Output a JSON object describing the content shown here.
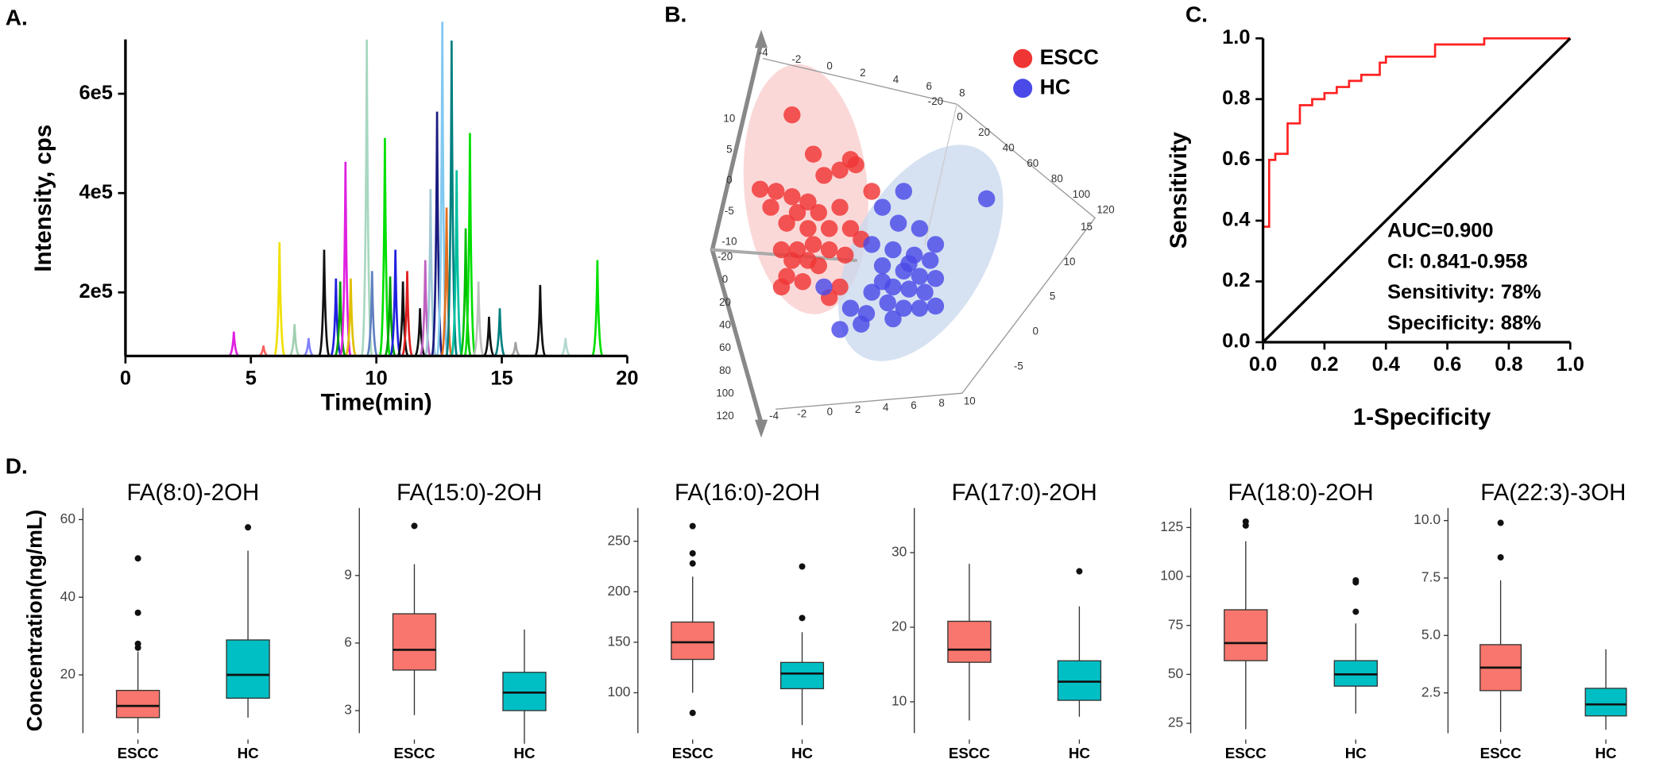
{
  "chart_data": [
    {
      "type": "peaks",
      "panel_label": "A.",
      "x_label": "Time(min)",
      "y_label": "Intensity, cps",
      "xlim": [
        0,
        20
      ],
      "xticks": [
        0,
        5,
        10,
        15,
        20
      ],
      "ylim": [
        72000,
        750000
      ],
      "yticks": [
        {
          "value": 200000,
          "label": "2e5"
        },
        {
          "value": 400000,
          "label": "4e5"
        },
        {
          "value": 600000,
          "label": "6e5"
        }
      ],
      "peaks": [
        {
          "x": 4.32,
          "value": 121000,
          "color": "#e020e0"
        },
        {
          "x": 5.5,
          "value": 93000,
          "color": "#ff6060"
        },
        {
          "x": 6.14,
          "value": 301000,
          "color": "#f0e000"
        },
        {
          "x": 6.74,
          "value": 136000,
          "color": "#a0d0b0"
        },
        {
          "x": 7.3,
          "value": 108000,
          "color": "#8080ff"
        },
        {
          "x": 7.92,
          "value": 286000,
          "color": "#111111"
        },
        {
          "x": 8.39,
          "value": 228000,
          "color": "#2020e0"
        },
        {
          "x": 8.56,
          "value": 222000,
          "color": "#00a000"
        },
        {
          "x": 8.77,
          "value": 463000,
          "color": "#e020e0"
        },
        {
          "x": 8.98,
          "value": 228000,
          "color": "#e0c000"
        },
        {
          "x": 9.62,
          "value": 709000,
          "color": "#a8d8c0"
        },
        {
          "x": 9.83,
          "value": 243000,
          "color": "#6080c0"
        },
        {
          "x": 10.34,
          "value": 511000,
          "color": "#00e000"
        },
        {
          "x": 10.55,
          "value": 232000,
          "color": "#00a000"
        },
        {
          "x": 10.76,
          "value": 286000,
          "color": "#2020e0"
        },
        {
          "x": 11.06,
          "value": 222000,
          "color": "#111111"
        },
        {
          "x": 11.23,
          "value": 243000,
          "color": "#e02020"
        },
        {
          "x": 11.74,
          "value": 168000,
          "color": "#111111"
        },
        {
          "x": 11.95,
          "value": 265000,
          "color": "#c060c0"
        },
        {
          "x": 12.16,
          "value": 408000,
          "color": "#a0c8d8"
        },
        {
          "x": 12.42,
          "value": 564000,
          "color": "#1a1a80"
        },
        {
          "x": 12.63,
          "value": 745000,
          "color": "#80c8f0"
        },
        {
          "x": 12.8,
          "value": 371000,
          "color": "#e07020"
        },
        {
          "x": 13.0,
          "value": 707000,
          "color": "#008080"
        },
        {
          "x": 13.2,
          "value": 446000,
          "color": "#00c0a0"
        },
        {
          "x": 13.56,
          "value": 329000,
          "color": "#00c000"
        },
        {
          "x": 13.73,
          "value": 521000,
          "color": "#00e000"
        },
        {
          "x": 14.07,
          "value": 222000,
          "color": "#c0c0c0"
        },
        {
          "x": 14.49,
          "value": 151000,
          "color": "#111111"
        },
        {
          "x": 14.92,
          "value": 168000,
          "color": "#008080"
        },
        {
          "x": 15.55,
          "value": 100000,
          "color": "#a0a0a0"
        },
        {
          "x": 16.53,
          "value": 215000,
          "color": "#111111"
        },
        {
          "x": 17.54,
          "value": 108000,
          "color": "#b0d8d0"
        },
        {
          "x": 18.81,
          "value": 265000,
          "color": "#00e000"
        }
      ]
    },
    {
      "type": "scatter",
      "panel_label": "B.",
      "legend": "top-right",
      "xlim": [
        0,
        100
      ],
      "ylim": [
        0,
        100
      ],
      "axes3d": [
        {
          "ticks": [
            -4,
            -2,
            0,
            2,
            4,
            6,
            8
          ]
        },
        {
          "ticks": [
            -20,
            0,
            20,
            40,
            60,
            80,
            100,
            120
          ]
        },
        {
          "ticks": [
            15,
            10,
            5,
            0,
            -5
          ]
        },
        {
          "ticks": [
            -4,
            -2,
            0,
            2,
            4,
            6,
            8,
            10
          ]
        },
        {
          "ticks": [
            10,
            5,
            0,
            -5,
            -10
          ]
        },
        {
          "ticks": [
            -20,
            0,
            20,
            40,
            60,
            80,
            100,
            120
          ]
        }
      ],
      "series": [
        {
          "name": "ESCC",
          "color": "#f03535",
          "x": [
            22,
            44,
            40,
            34,
            30,
            46,
            10,
            16,
            22,
            28,
            14,
            24,
            32,
            40,
            20,
            28,
            36,
            18,
            24,
            30,
            36,
            22,
            28,
            32,
            20,
            26,
            18,
            36,
            48,
            42,
            52,
            40,
            44
          ],
          "values": [
            88.8,
            72,
            68,
            66,
            74,
            70,
            60.8,
            60,
            58,
            56,
            54,
            52,
            52,
            54,
            48,
            46,
            46,
            38,
            38,
            40,
            38,
            34,
            34,
            32,
            28,
            26,
            24,
            20,
            42,
            36,
            60,
            24,
            46
          ]
        },
        {
          "name": "HC",
          "color": "#4a4ae8",
          "x": [
            64,
            95.2,
            56,
            62,
            70,
            76,
            52,
            60,
            68,
            74,
            56,
            64,
            70,
            76,
            60,
            66,
            72,
            52,
            58,
            64,
            70,
            76,
            44,
            50,
            60,
            40,
            48,
            34,
            66,
            56
          ],
          "values": [
            60,
            57.2,
            54,
            48,
            46,
            40,
            40,
            38,
            36,
            34,
            32,
            30,
            28,
            27.2,
            24,
            23.2,
            22,
            22,
            18,
            16,
            16,
            16.8,
            16,
            14,
            12,
            8,
            10,
            24,
            32.8,
            26
          ]
        }
      ]
    },
    {
      "type": "line",
      "panel_label": "C.",
      "x_label": "1-Specificity",
      "y_label": "Sensitivity",
      "xlim": [
        0,
        1
      ],
      "xticks": [
        {
          "value": 0,
          "label": "0.0"
        },
        {
          "value": 0.2,
          "label": "0.2"
        },
        {
          "value": 0.4,
          "label": "0.4"
        },
        {
          "value": 0.6,
          "label": "0.6"
        },
        {
          "value": 0.8,
          "label": "0.8"
        },
        {
          "value": 1,
          "label": "1.0"
        }
      ],
      "ylim": [
        0,
        1
      ],
      "yticks": [
        {
          "value": 0,
          "label": "0.0"
        },
        {
          "value": 0.2,
          "label": "0.2"
        },
        {
          "value": 0.4,
          "label": "0.4"
        },
        {
          "value": 0.6,
          "label": "0.6"
        },
        {
          "value": 0.8,
          "label": "0.8"
        },
        {
          "value": 1,
          "label": "1.0"
        }
      ],
      "annotations": [
        "AUC=0.900",
        "CI: 0.841-0.958",
        "Sensitivity: 78%",
        "Specificity: 88%"
      ],
      "series": [
        {
          "color": "#ff2020",
          "x": [
            0,
            0,
            0.02,
            0.02,
            0.04,
            0.04,
            0.08,
            0.08,
            0.12,
            0.12,
            0.16,
            0.16,
            0.2,
            0.2,
            0.24,
            0.24,
            0.28,
            0.28,
            0.32,
            0.32,
            0.38,
            0.38,
            0.4,
            0.4,
            0.56,
            0.56,
            0.72,
            0.72,
            1
          ],
          "values": [
            0,
            0.38,
            0.38,
            0.6,
            0.6,
            0.62,
            0.62,
            0.72,
            0.72,
            0.78,
            0.78,
            0.8,
            0.8,
            0.82,
            0.82,
            0.84,
            0.84,
            0.86,
            0.86,
            0.88,
            0.88,
            0.92,
            0.92,
            0.94,
            0.94,
            0.98,
            0.98,
            1,
            1
          ]
        },
        {
          "color": "#000000",
          "x": [
            0,
            1
          ],
          "values": [
            0,
            1
          ]
        }
      ]
    },
    {
      "type": "box",
      "panel_label": "D.",
      "y_label": "Concentration(ng/mL)",
      "title": "FA(8:0)-2OH",
      "categories": [
        "ESCC",
        "HC"
      ],
      "colors": [
        "#f8766d",
        "#00bfc4"
      ],
      "ylim": [
        5,
        63
      ],
      "yticks": [
        20,
        40,
        60
      ],
      "boxes": [
        {
          "whisker_low": 5,
          "q1": 9,
          "median": 12,
          "q3": 16,
          "whisker_high": 26,
          "outliers": [
            27,
            28,
            36,
            50
          ]
        },
        {
          "whisker_low": 9,
          "q1": 14,
          "median": 20,
          "q3": 29,
          "whisker_high": 52,
          "outliers": [
            58
          ]
        }
      ]
    },
    {
      "type": "box",
      "title": "FA(15:0)-2OH",
      "categories": [
        "ESCC",
        "HC"
      ],
      "colors": [
        "#f8766d",
        "#00bfc4"
      ],
      "ylim": [
        2,
        12
      ],
      "yticks": [
        3,
        6,
        9
      ],
      "boxes": [
        {
          "whisker_low": 2.8,
          "q1": 4.8,
          "median": 5.7,
          "q3": 7.3,
          "whisker_high": 9.5,
          "outliers": [
            11.2
          ]
        },
        {
          "whisker_low": 1.7,
          "q1": 3.0,
          "median": 3.8,
          "q3": 4.7,
          "whisker_high": 6.6,
          "outliers": []
        }
      ]
    },
    {
      "type": "box",
      "title": "FA(16:0)-2OH",
      "categories": [
        "ESCC",
        "HC"
      ],
      "colors": [
        "#f8766d",
        "#00bfc4"
      ],
      "ylim": [
        60,
        283
      ],
      "yticks": [
        100,
        150,
        200,
        250
      ],
      "boxes": [
        {
          "whisker_low": 100,
          "q1": 133,
          "median": 150,
          "q3": 170,
          "whisker_high": 215,
          "outliers": [
            80,
            228,
            238,
            265
          ]
        },
        {
          "whisker_low": 68,
          "q1": 104,
          "median": 119,
          "q3": 130,
          "whisker_high": 160,
          "outliers": [
            174,
            225
          ]
        }
      ]
    },
    {
      "type": "box",
      "title": "FA(17:0)-2OH",
      "categories": [
        "ESCC",
        "HC"
      ],
      "colors": [
        "#f8766d",
        "#00bfc4"
      ],
      "ylim": [
        5.8,
        36
      ],
      "yticks": [
        10,
        20,
        30
      ],
      "boxes": [
        {
          "whisker_low": 7.5,
          "q1": 15.3,
          "median": 17,
          "q3": 20.8,
          "whisker_high": 28.5,
          "outliers": []
        },
        {
          "whisker_low": 8,
          "q1": 10.2,
          "median": 12.7,
          "q3": 15.5,
          "whisker_high": 22.8,
          "outliers": [
            27.5
          ]
        }
      ]
    },
    {
      "type": "box",
      "title": "FA(18:0)-2OH",
      "categories": [
        "ESCC",
        "HC"
      ],
      "colors": [
        "#f8766d",
        "#00bfc4"
      ],
      "ylim": [
        20,
        135
      ],
      "yticks": [
        25,
        50,
        75,
        100,
        125
      ],
      "boxes": [
        {
          "whisker_low": 22,
          "q1": 57,
          "median": 66,
          "q3": 83,
          "whisker_high": 118,
          "outliers": [
            126,
            128
          ]
        },
        {
          "whisker_low": 30,
          "q1": 44,
          "median": 50,
          "q3": 57,
          "whisker_high": 76,
          "outliers": [
            82,
            97,
            98
          ]
        }
      ]
    },
    {
      "type": "box",
      "title": "FA(22:3)-3OH",
      "categories": [
        "ESCC",
        "HC"
      ],
      "colors": [
        "#f8766d",
        "#00bfc4"
      ],
      "ylim": [
        0.75,
        10.55
      ],
      "yticks": [
        2.5,
        {
          "value": 5,
          "label": "5.0"
        },
        7.5,
        {
          "value": 10,
          "label": "10.0"
        }
      ],
      "boxes": [
        {
          "whisker_low": 0.8,
          "q1": 2.6,
          "median": 3.6,
          "q3": 4.6,
          "whisker_high": 7.4,
          "outliers": [
            8.4,
            9.9
          ]
        },
        {
          "whisker_low": 0.9,
          "q1": 1.5,
          "median": 2.0,
          "q3": 2.7,
          "whisker_high": 4.4,
          "outliers": []
        }
      ]
    }
  ]
}
